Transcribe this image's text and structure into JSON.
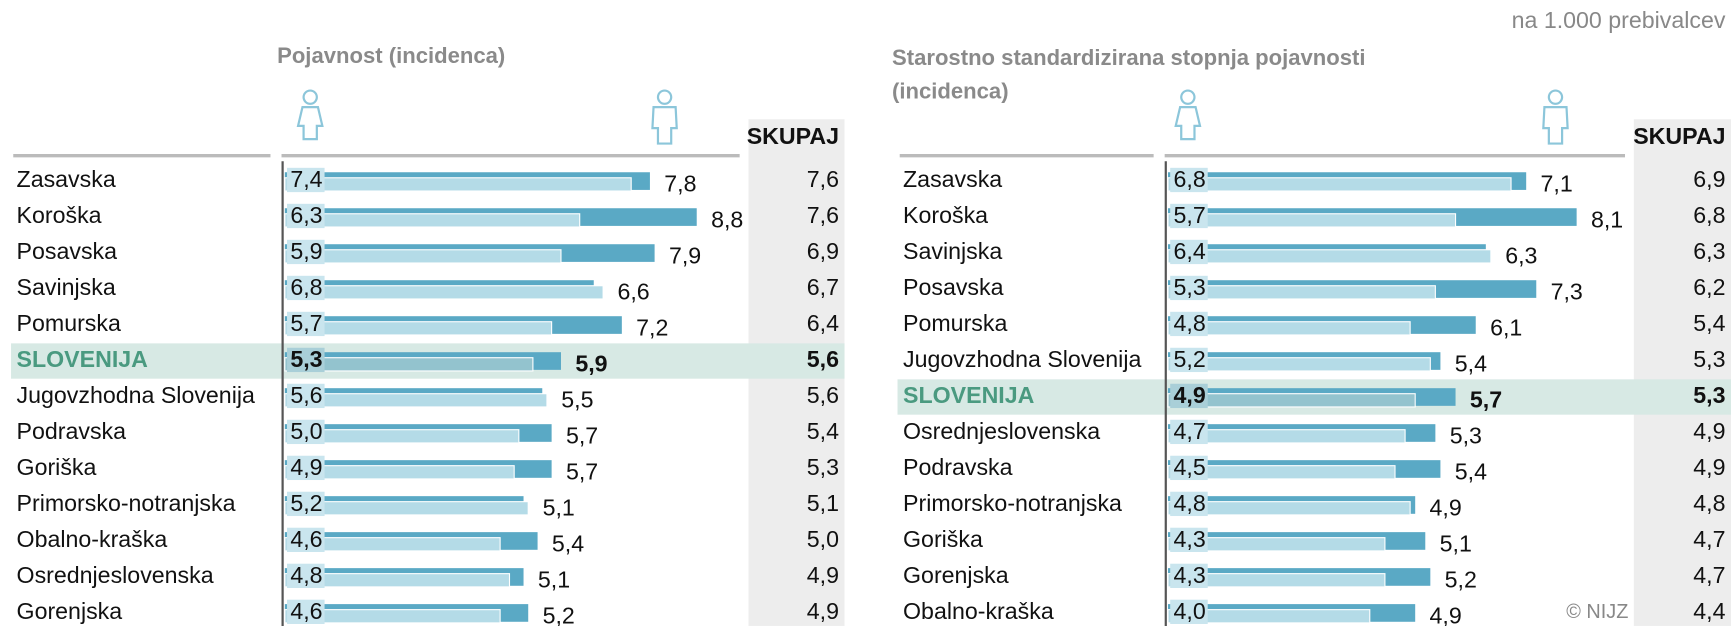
{
  "note": "na 1.000 prebivalcev",
  "credit": "© NIJZ",
  "chart_data": [
    {
      "type": "bar",
      "title": "Pojavnost (incidenca)",
      "highlight": 5,
      "highlight_color": "#d7e9e4",
      "xlim": [
        0,
        10
      ],
      "categories": [
        "Zasavska",
        "Koroška",
        "Posavska",
        "Savinjska",
        "Pomurska",
        "SLOVENIJA",
        "Jugovzhodna Slovenija",
        "Podravska",
        "Goriška",
        "Primorsko-notranjska",
        "Obalno-kraška",
        "Osrednjeslovenska",
        "Gorenjska"
      ],
      "series": [
        {
          "color": "#b4dbe7",
          "values": [
            7.4,
            6.3,
            5.9,
            6.8,
            5.7,
            5.3,
            5.6,
            5.0,
            4.9,
            5.2,
            4.6,
            4.8,
            4.6
          ],
          "value_labels": [
            "7,4",
            "6,3",
            "5,9",
            "6,8",
            "5,7",
            "5,3",
            "5,6",
            "5,0",
            "4,9",
            "5,2",
            "4,6",
            "4,8",
            "4,6"
          ]
        },
        {
          "color": "#5aa9c5",
          "values": [
            7.8,
            8.8,
            7.9,
            6.6,
            7.2,
            5.9,
            5.5,
            5.7,
            5.7,
            5.1,
            5.4,
            5.1,
            5.2
          ],
          "value_labels": [
            "7,8",
            "8,8",
            "7,9",
            "6,6",
            "7,2",
            "5,9",
            "5,5",
            "5,7",
            "5,7",
            "5,1",
            "5,4",
            "5,1",
            "5,2"
          ]
        },
        {
          "name": "SKUPAJ",
          "values": [
            7.6,
            7.6,
            6.9,
            6.7,
            6.4,
            5.6,
            5.6,
            5.4,
            5.3,
            5.1,
            5.0,
            4.9,
            4.9
          ],
          "value_labels": [
            "7,6",
            "7,6",
            "6,9",
            "6,7",
            "6,4",
            "5,6",
            "5,6",
            "5,4",
            "5,3",
            "5,1",
            "5,0",
            "4,9",
            "4,9"
          ]
        }
      ]
    },
    {
      "type": "bar",
      "title": "Starostno standardizirana stopnja pojavnosti (incidenca)",
      "highlight": 6,
      "highlight_color": "#d7e9e4",
      "xlim": [
        0,
        10
      ],
      "categories": [
        "Zasavska",
        "Koroška",
        "Savinjska",
        "Posavska",
        "Pomurska",
        "Jugovzhodna Slovenija",
        "SLOVENIJA",
        "Osrednjeslovenska",
        "Podravska",
        "Primorsko-notranjska",
        "Goriška",
        "Gorenjska",
        "Obalno-kraška"
      ],
      "series": [
        {
          "color": "#b4dbe7",
          "values": [
            6.8,
            5.7,
            6.4,
            5.3,
            4.8,
            5.2,
            4.9,
            4.7,
            4.5,
            4.8,
            4.3,
            4.3,
            4.0
          ],
          "value_labels": [
            "6,8",
            "5,7",
            "6,4",
            "5,3",
            "4,8",
            "5,2",
            "4,9",
            "4,7",
            "4,5",
            "4,8",
            "4,3",
            "4,3",
            "4,0"
          ]
        },
        {
          "color": "#5aa9c5",
          "values": [
            7.1,
            8.1,
            6.3,
            7.3,
            6.1,
            5.4,
            5.7,
            5.3,
            5.4,
            4.9,
            5.1,
            5.2,
            4.9
          ],
          "value_labels": [
            "7,1",
            "8,1",
            "6,3",
            "7,3",
            "6,1",
            "5,4",
            "5,7",
            "5,3",
            "5,4",
            "4,9",
            "5,1",
            "5,2",
            "4,9"
          ]
        },
        {
          "name": "SKUPAJ",
          "values": [
            6.9,
            6.8,
            6.3,
            6.2,
            5.4,
            5.3,
            5.3,
            4.9,
            4.9,
            4.8,
            4.7,
            4.7,
            4.4
          ],
          "value_labels": [
            "6,9",
            "6,8",
            "6,3",
            "6,2",
            "5,4",
            "5,3",
            "5,3",
            "4,9",
            "4,9",
            "4,8",
            "4,7",
            "4,7",
            "4,4"
          ]
        }
      ]
    }
  ]
}
